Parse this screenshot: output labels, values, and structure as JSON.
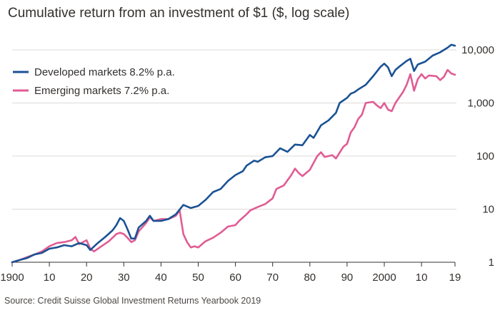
{
  "chart_data": {
    "type": "line",
    "title": "Cumulative return from an investment of $1 ($, log scale)",
    "source": "Source: Credit Suisse Global Investment Returns Yearbook 2019",
    "y_scale": "log",
    "ylim": [
      1,
      10000
    ],
    "xlim": [
      1900,
      2019
    ],
    "x_ticks": [
      {
        "value": 1900,
        "label": "1900"
      },
      {
        "value": 1910,
        "label": "10"
      },
      {
        "value": 1920,
        "label": "20"
      },
      {
        "value": 1930,
        "label": "30"
      },
      {
        "value": 1940,
        "label": "40"
      },
      {
        "value": 1950,
        "label": "50"
      },
      {
        "value": 1960,
        "label": "60"
      },
      {
        "value": 1970,
        "label": "70"
      },
      {
        "value": 1980,
        "label": "80"
      },
      {
        "value": 1990,
        "label": "90"
      },
      {
        "value": 2000,
        "label": "2000"
      },
      {
        "value": 2010,
        "label": "10"
      },
      {
        "value": 2019,
        "label": "19"
      }
    ],
    "y_ticks": [
      {
        "value": 1,
        "label": "1"
      },
      {
        "value": 10,
        "label": "10"
      },
      {
        "value": 100,
        "label": "100"
      },
      {
        "value": 1000,
        "label": "1,000"
      },
      {
        "value": 10000,
        "label": "10,000"
      }
    ],
    "legend_position": "top-left",
    "series": [
      {
        "name": "Developed markets 8.2% p.a.",
        "color": "#1a5294",
        "points": [
          [
            1900,
            1.0
          ],
          [
            1902,
            1.1
          ],
          [
            1904,
            1.2
          ],
          [
            1906,
            1.4
          ],
          [
            1908,
            1.5
          ],
          [
            1910,
            1.8
          ],
          [
            1912,
            1.9
          ],
          [
            1914,
            2.1
          ],
          [
            1916,
            2.0
          ],
          [
            1918,
            2.3
          ],
          [
            1920,
            2.1
          ],
          [
            1921,
            1.7
          ],
          [
            1923,
            2.3
          ],
          [
            1925,
            3.0
          ],
          [
            1927,
            4.0
          ],
          [
            1928,
            5.0
          ],
          [
            1929,
            6.8
          ],
          [
            1930,
            6.0
          ],
          [
            1931,
            4.2
          ],
          [
            1932,
            2.8
          ],
          [
            1933,
            2.8
          ],
          [
            1934,
            4.5
          ],
          [
            1936,
            6.0
          ],
          [
            1937,
            7.5
          ],
          [
            1938,
            6.0
          ],
          [
            1940,
            6.0
          ],
          [
            1942,
            6.5
          ],
          [
            1944,
            8.0
          ],
          [
            1946,
            12.0
          ],
          [
            1948,
            10.5
          ],
          [
            1950,
            11.5
          ],
          [
            1952,
            15.0
          ],
          [
            1954,
            21.0
          ],
          [
            1956,
            24.0
          ],
          [
            1958,
            34.0
          ],
          [
            1960,
            44.0
          ],
          [
            1962,
            52.0
          ],
          [
            1963,
            66.0
          ],
          [
            1965,
            82.0
          ],
          [
            1966,
            78.0
          ],
          [
            1968,
            95.0
          ],
          [
            1970,
            100.0
          ],
          [
            1972,
            140.0
          ],
          [
            1974,
            120.0
          ],
          [
            1976,
            165.0
          ],
          [
            1978,
            160.0
          ],
          [
            1980,
            250.0
          ],
          [
            1981,
            220.0
          ],
          [
            1983,
            380.0
          ],
          [
            1985,
            470.0
          ],
          [
            1987,
            650.0
          ],
          [
            1988,
            1000.0
          ],
          [
            1990,
            1250.0
          ],
          [
            1991,
            1500.0
          ],
          [
            1992,
            1600.0
          ],
          [
            1993,
            1800.0
          ],
          [
            1995,
            2200.0
          ],
          [
            1997,
            3200.0
          ],
          [
            1999,
            4800.0
          ],
          [
            2000,
            5500.0
          ],
          [
            2001,
            4700.0
          ],
          [
            2002,
            3200.0
          ],
          [
            2003,
            4200.0
          ],
          [
            2004,
            4800.0
          ],
          [
            2006,
            6200.0
          ],
          [
            2007,
            6800.0
          ],
          [
            2008,
            4000.0
          ],
          [
            2009,
            5300.0
          ],
          [
            2011,
            6000.0
          ],
          [
            2013,
            7800.0
          ],
          [
            2015,
            9000.0
          ],
          [
            2017,
            11000.0
          ],
          [
            2018,
            12500.0
          ],
          [
            2019,
            12000.0
          ]
        ]
      },
      {
        "name": "Emerging markets 7.2% p.a.",
        "color": "#e05c94",
        "points": [
          [
            1900,
            1.0
          ],
          [
            1902,
            1.1
          ],
          [
            1904,
            1.25
          ],
          [
            1906,
            1.4
          ],
          [
            1908,
            1.6
          ],
          [
            1910,
            2.0
          ],
          [
            1912,
            2.3
          ],
          [
            1914,
            2.4
          ],
          [
            1916,
            2.6
          ],
          [
            1917,
            3.0
          ],
          [
            1918,
            2.2
          ],
          [
            1920,
            2.6
          ],
          [
            1921,
            1.8
          ],
          [
            1922,
            1.6
          ],
          [
            1924,
            2.0
          ],
          [
            1926,
            2.5
          ],
          [
            1928,
            3.4
          ],
          [
            1929,
            3.6
          ],
          [
            1930,
            3.4
          ],
          [
            1931,
            2.9
          ],
          [
            1932,
            2.4
          ],
          [
            1933,
            2.6
          ],
          [
            1934,
            3.8
          ],
          [
            1936,
            5.5
          ],
          [
            1937,
            7.0
          ],
          [
            1938,
            6.0
          ],
          [
            1940,
            6.5
          ],
          [
            1942,
            6.5
          ],
          [
            1944,
            7.5
          ],
          [
            1945,
            9.5
          ],
          [
            1946,
            3.4
          ],
          [
            1947,
            2.4
          ],
          [
            1948,
            1.9
          ],
          [
            1949,
            2.0
          ],
          [
            1950,
            1.9
          ],
          [
            1952,
            2.5
          ],
          [
            1954,
            2.9
          ],
          [
            1956,
            3.6
          ],
          [
            1958,
            4.7
          ],
          [
            1960,
            5.0
          ],
          [
            1961,
            6.0
          ],
          [
            1963,
            8.0
          ],
          [
            1964,
            9.5
          ],
          [
            1966,
            11.0
          ],
          [
            1968,
            12.5
          ],
          [
            1970,
            16.0
          ],
          [
            1971,
            24.0
          ],
          [
            1973,
            28.0
          ],
          [
            1975,
            44.0
          ],
          [
            1976,
            58.0
          ],
          [
            1977,
            48.0
          ],
          [
            1978,
            42.0
          ],
          [
            1980,
            55.0
          ],
          [
            1982,
            100.0
          ],
          [
            1983,
            118.0
          ],
          [
            1984,
            96.0
          ],
          [
            1986,
            104.0
          ],
          [
            1987,
            90.0
          ],
          [
            1989,
            150.0
          ],
          [
            1990,
            170.0
          ],
          [
            1991,
            280.0
          ],
          [
            1992,
            350.0
          ],
          [
            1993,
            500.0
          ],
          [
            1994,
            600.0
          ],
          [
            1995,
            1000.0
          ],
          [
            1997,
            1050.0
          ],
          [
            1998,
            900.0
          ],
          [
            1999,
            800.0
          ],
          [
            2000,
            1000.0
          ],
          [
            2001,
            750.0
          ],
          [
            2002,
            700.0
          ],
          [
            2003,
            1000.0
          ],
          [
            2005,
            1600.0
          ],
          [
            2006,
            2200.0
          ],
          [
            2007,
            3500.0
          ],
          [
            2008,
            1700.0
          ],
          [
            2009,
            2800.0
          ],
          [
            2010,
            3500.0
          ],
          [
            2011,
            2900.0
          ],
          [
            2012,
            3300.0
          ],
          [
            2014,
            3200.0
          ],
          [
            2015,
            2700.0
          ],
          [
            2016,
            3100.0
          ],
          [
            2017,
            4200.0
          ],
          [
            2018,
            3600.0
          ],
          [
            2019,
            3400.0
          ]
        ]
      }
    ]
  }
}
